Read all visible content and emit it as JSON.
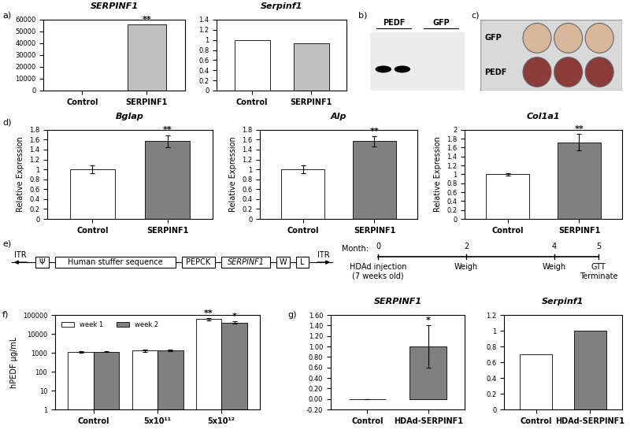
{
  "panel_labels": [
    "a)",
    "b)",
    "c)",
    "d)",
    "e)",
    "f)",
    "g)"
  ],
  "chart_data": [
    {
      "type": "bar",
      "title": "SERPINF1",
      "categories": [
        "Control",
        "SERPINF1"
      ],
      "values": [
        1,
        56000
      ],
      "colors": [
        "#ffffff",
        "#bfbfbf"
      ],
      "ylim": [
        0,
        60000
      ],
      "yticks": [
        0,
        10000,
        20000,
        30000,
        40000,
        50000,
        60000
      ],
      "annotations": [
        {
          "text": "**",
          "category": "SERPINF1"
        }
      ]
    },
    {
      "type": "bar",
      "title": "Serpinf1",
      "categories": [
        "Control",
        "SERPINF1"
      ],
      "values": [
        1,
        0.93
      ],
      "colors": [
        "#ffffff",
        "#bfbfbf"
      ],
      "ylim": [
        0,
        1.4
      ],
      "yticks": [
        0,
        0.2,
        0.4,
        0.6,
        0.8,
        1,
        1.2,
        1.4
      ]
    },
    {
      "type": "bar",
      "title": "Bglap",
      "y_label": "Relative Expression",
      "categories": [
        "Control",
        "SERPINF1"
      ],
      "values": [
        1,
        1.57
      ],
      "errors": [
        0.08,
        0.12
      ],
      "colors": [
        "#ffffff",
        "#808080"
      ],
      "ylim": [
        0,
        1.8
      ],
      "yticks": [
        0,
        0.2,
        0.4,
        0.6,
        0.8,
        1,
        1.2,
        1.4,
        1.6,
        1.8
      ],
      "annotations": [
        {
          "text": "**",
          "category": "SERPINF1"
        }
      ]
    },
    {
      "type": "bar",
      "title": "Alp",
      "y_label": "Relative Expression",
      "categories": [
        "Control",
        "SERPINF1"
      ],
      "values": [
        1,
        1.57
      ],
      "errors": [
        0.08,
        0.1
      ],
      "colors": [
        "#ffffff",
        "#808080"
      ],
      "ylim": [
        0,
        1.8
      ],
      "yticks": [
        0,
        0.2,
        0.4,
        0.6,
        0.8,
        1,
        1.2,
        1.4,
        1.6,
        1.8
      ],
      "annotations": [
        {
          "text": "**",
          "category": "SERPINF1"
        }
      ]
    },
    {
      "type": "bar",
      "title": "Col1a1",
      "y_label": "Relative Expression",
      "categories": [
        "Control",
        "SERPINF1"
      ],
      "values": [
        1,
        1.72
      ],
      "errors": [
        0.02,
        0.18
      ],
      "colors": [
        "#ffffff",
        "#808080"
      ],
      "ylim": [
        0,
        2
      ],
      "yticks": [
        0,
        0.2,
        0.4,
        0.6,
        0.8,
        1,
        1.2,
        1.4,
        1.6,
        1.8,
        2
      ],
      "annotations": [
        {
          "text": "**",
          "category": "SERPINF1"
        }
      ]
    },
    {
      "type": "bar",
      "y_label": "hPEDF µg/mL",
      "categories": [
        "Control",
        "5x10¹¹",
        "5x10¹²"
      ],
      "series": [
        {
          "name": "week 1",
          "color": "#ffffff",
          "values": [
            1100,
            1300,
            60000
          ],
          "errors": [
            80,
            150,
            8000
          ]
        },
        {
          "name": "week 2",
          "color": "#808080",
          "values": [
            1150,
            1400,
            40000
          ],
          "errors": [
            70,
            120,
            6000
          ]
        }
      ],
      "log": "y",
      "ylim": [
        1,
        100000
      ],
      "yticks": [
        1,
        10,
        100,
        1000,
        10000,
        100000
      ],
      "legend": "upper left",
      "annotations": [
        {
          "text": "**",
          "category": "5x10¹²",
          "series": "week 1"
        },
        {
          "text": "*",
          "category": "5x10¹²",
          "series": "week 2"
        }
      ]
    },
    {
      "type": "bar",
      "title": "SERPINF1",
      "categories": [
        "Control",
        "HDAd-SERPINF1"
      ],
      "values": [
        0,
        1.0
      ],
      "errors": [
        0,
        0.4
      ],
      "colors": [
        "#ffffff",
        "#808080"
      ],
      "ylim": [
        -0.2,
        1.6
      ],
      "yticks": [
        {
          "value": -0.2,
          "label": "-0.20"
        },
        {
          "value": 0,
          "label": "0.00"
        },
        {
          "value": 0.2,
          "label": "0.20"
        },
        {
          "value": 0.4,
          "label": "0.40"
        },
        {
          "value": 0.6,
          "label": "0.60"
        },
        {
          "value": 0.8,
          "label": "0.80"
        },
        {
          "value": 1,
          "label": "1.00"
        },
        {
          "value": 1.2,
          "label": "1.20"
        },
        {
          "value": 1.4,
          "label": "1.40"
        },
        {
          "value": 1.6,
          "label": "1.60"
        }
      ],
      "annotations": [
        {
          "text": "*",
          "category": "HDAd-SERPINF1"
        }
      ]
    },
    {
      "type": "bar",
      "title": "Serpinf1",
      "categories": [
        "Control",
        "HDAd-SERPINF1"
      ],
      "values": [
        0.7,
        1
      ],
      "colors": [
        "#ffffff",
        "#808080"
      ],
      "ylim": [
        0,
        1.2
      ],
      "yticks": [
        0,
        0.2,
        0.4,
        0.6,
        0.8,
        1,
        1.2
      ]
    }
  ],
  "blot": {
    "lanes": [
      "PEDF",
      "GFP"
    ]
  },
  "plate": {
    "rows": [
      "GFP",
      "PEDF"
    ]
  },
  "construct": [
    "ITR",
    "Ψ",
    "Human stuffer sequence",
    "PEPCK",
    "SERPINF1",
    "W",
    "L",
    "ITR"
  ],
  "timeline": {
    "label": "Month:",
    "months": [
      0,
      2,
      4,
      5
    ],
    "events": [
      "HDAd injection\n(7 weeks old)",
      "Weigh",
      "Weigh",
      "GTT\nTerminate"
    ]
  }
}
